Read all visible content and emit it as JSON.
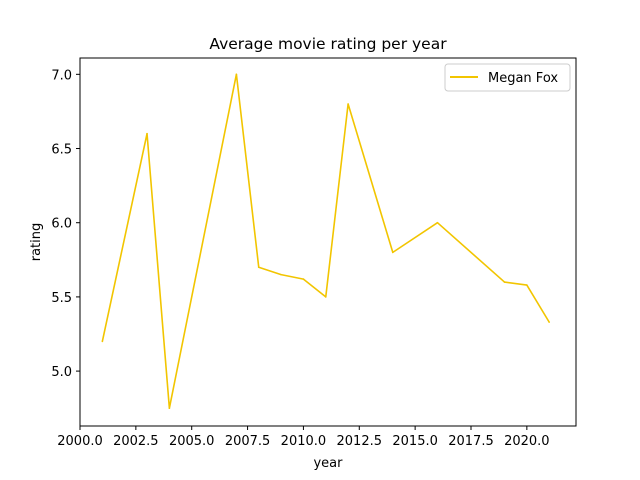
{
  "chart_data": {
    "type": "line",
    "title": "Average movie rating per year",
    "xlabel": "year",
    "ylabel": "rating",
    "xlim": [
      2000.0,
      2022.2
    ],
    "ylim": [
      4.63,
      7.11
    ],
    "xticks": [
      "2000.0",
      "2002.5",
      "2005.0",
      "2007.5",
      "2010.0",
      "2012.5",
      "2015.0",
      "2017.5",
      "2020.0"
    ],
    "yticks": [
      "5.0",
      "5.5",
      "6.0",
      "6.5",
      "7.0"
    ],
    "grid": false,
    "legend_position": "top-right",
    "series": [
      {
        "name": "Megan Fox",
        "color": "#f2c500",
        "x": [
          2001,
          2003,
          2004,
          2007,
          2008,
          2009,
          2010,
          2011,
          2012,
          2014,
          2016,
          2019,
          2020,
          2021
        ],
        "y": [
          5.2,
          6.6,
          4.75,
          7.0,
          5.7,
          5.65,
          5.62,
          5.5,
          6.8,
          5.8,
          6.0,
          5.6,
          5.58,
          5.33
        ]
      }
    ]
  }
}
